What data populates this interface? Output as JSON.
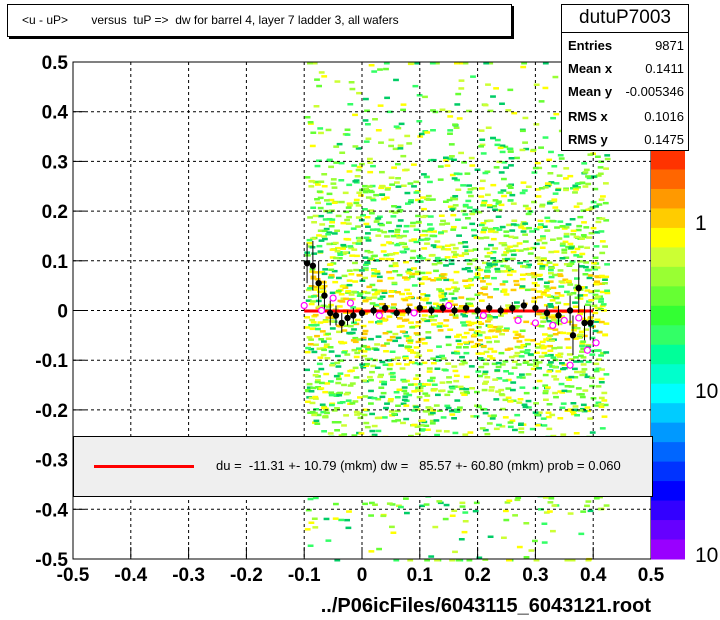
{
  "title": "<u - uP>       versus  tuP =>  dw for barrel 4, layer 7 ladder 3, all wafers",
  "stats": {
    "name": "dutuP7003",
    "rows": [
      {
        "label": "Entries",
        "value": "9871"
      },
      {
        "label": "Mean x",
        "value": "0.1411"
      },
      {
        "label": "Mean y",
        "value": "-0.005346"
      },
      {
        "label": "RMS x",
        "value": "0.1016"
      },
      {
        "label": "RMS y",
        "value": "0.1475"
      }
    ]
  },
  "fit_legend": "du =  -11.31 +- 10.79 (mkm) dw =   85.57 +- 60.80 (mkm) prob = 0.060",
  "colorbar_labels": [
    "1",
    "10",
    "10"
  ],
  "colors": {
    "fit_line": "#ff0000",
    "profile_points": "#000000",
    "open_markers": "#ff00ff"
  },
  "chart_data": {
    "type": "heatmap",
    "title": "<u - uP>       versus  tuP =>  dw for barrel 4, layer 7 ladder 3, all wafers",
    "xlabel": "../P06icFiles/6043115_6043121.root",
    "ylabel": "",
    "xlim": [
      -0.5,
      0.5
    ],
    "ylim": [
      -0.5,
      0.5
    ],
    "x_ticks": [
      "-0.5",
      "-0.4",
      "-0.3",
      "-0.2",
      "-0.1",
      "0",
      "0.1",
      "0.2",
      "0.3",
      "0.4",
      "0.5"
    ],
    "y_ticks": [
      "-0.5",
      "-0.4",
      "-0.3",
      "-0.2",
      "-0.1",
      "0",
      "0.1",
      "0.2",
      "0.3",
      "0.4",
      "0.5"
    ],
    "grid": true,
    "fit_line": {
      "x": [
        -0.1,
        0.4
      ],
      "y": [
        -0.001,
        -0.001
      ]
    },
    "profile": [
      {
        "x": -0.095,
        "y": 0.095,
        "err": 0.04
      },
      {
        "x": -0.085,
        "y": 0.09,
        "err": 0.05
      },
      {
        "x": -0.075,
        "y": 0.055,
        "err": 0.045
      },
      {
        "x": -0.065,
        "y": 0.03,
        "err": 0.03
      },
      {
        "x": -0.055,
        "y": -0.005,
        "err": 0.025
      },
      {
        "x": -0.045,
        "y": -0.01,
        "err": 0.02
      },
      {
        "x": -0.035,
        "y": -0.025,
        "err": 0.02
      },
      {
        "x": -0.025,
        "y": -0.015,
        "err": 0.015
      },
      {
        "x": -0.015,
        "y": -0.01,
        "err": 0.015
      },
      {
        "x": 0.0,
        "y": -0.005,
        "err": 0.01
      },
      {
        "x": 0.02,
        "y": 0.0,
        "err": 0.01
      },
      {
        "x": 0.04,
        "y": 0.005,
        "err": 0.01
      },
      {
        "x": 0.06,
        "y": -0.005,
        "err": 0.01
      },
      {
        "x": 0.08,
        "y": 0.0,
        "err": 0.01
      },
      {
        "x": 0.1,
        "y": 0.005,
        "err": 0.01
      },
      {
        "x": 0.12,
        "y": 0.0,
        "err": 0.01
      },
      {
        "x": 0.14,
        "y": 0.005,
        "err": 0.01
      },
      {
        "x": 0.16,
        "y": 0.0,
        "err": 0.01
      },
      {
        "x": 0.18,
        "y": 0.005,
        "err": 0.01
      },
      {
        "x": 0.2,
        "y": 0.0,
        "err": 0.01
      },
      {
        "x": 0.22,
        "y": 0.005,
        "err": 0.01
      },
      {
        "x": 0.24,
        "y": 0.0,
        "err": 0.01
      },
      {
        "x": 0.26,
        "y": 0.005,
        "err": 0.012
      },
      {
        "x": 0.28,
        "y": 0.01,
        "err": 0.012
      },
      {
        "x": 0.3,
        "y": 0.005,
        "err": 0.015
      },
      {
        "x": 0.32,
        "y": -0.005,
        "err": 0.015
      },
      {
        "x": 0.34,
        "y": -0.01,
        "err": 0.02
      },
      {
        "x": 0.36,
        "y": 0.0,
        "err": 0.03
      },
      {
        "x": 0.365,
        "y": -0.05,
        "err": 0.04
      },
      {
        "x": 0.375,
        "y": 0.045,
        "err": 0.05
      },
      {
        "x": 0.385,
        "y": -0.025,
        "err": 0.035
      },
      {
        "x": 0.395,
        "y": -0.025,
        "err": 0.035
      }
    ],
    "open_points": [
      {
        "x": -0.1,
        "y": 0.01
      },
      {
        "x": -0.07,
        "y": 0.0
      },
      {
        "x": -0.05,
        "y": 0.025
      },
      {
        "x": -0.02,
        "y": 0.015
      },
      {
        "x": 0.03,
        "y": -0.01
      },
      {
        "x": 0.09,
        "y": -0.005
      },
      {
        "x": 0.15,
        "y": 0.01
      },
      {
        "x": 0.21,
        "y": -0.01
      },
      {
        "x": 0.27,
        "y": -0.02
      },
      {
        "x": 0.3,
        "y": -0.025
      },
      {
        "x": 0.33,
        "y": -0.03
      },
      {
        "x": 0.35,
        "y": -0.02
      },
      {
        "x": 0.36,
        "y": -0.11
      },
      {
        "x": 0.375,
        "y": -0.015
      },
      {
        "x": 0.39,
        "y": -0.08
      },
      {
        "x": 0.405,
        "y": -0.065
      }
    ]
  }
}
